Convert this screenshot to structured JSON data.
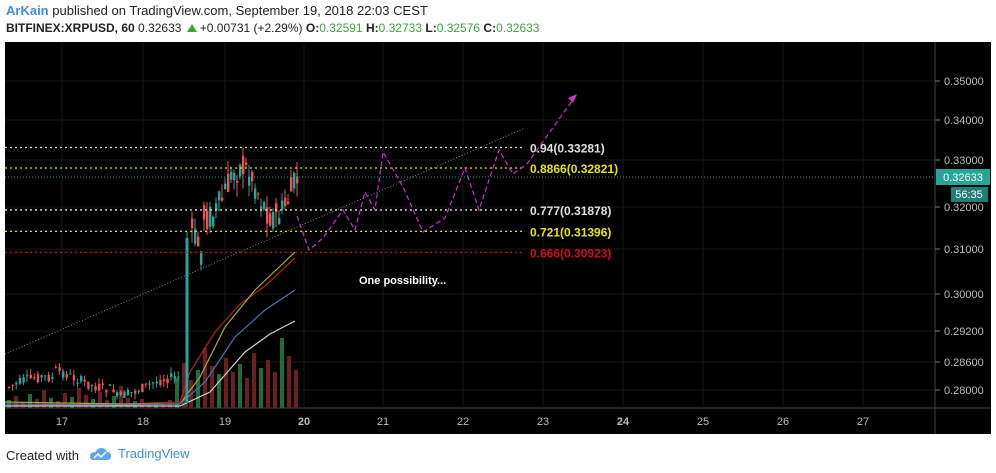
{
  "header": {
    "author": "ArKain",
    "published": "published on TradingView.com, September 19, 2018 22:03 CEST",
    "symbol": "BITFINEX:XRPUSD, 60",
    "last": "0.32633",
    "change": "+0.00731 (+2.29%)",
    "o_label": "O:",
    "o_value": "0.32591",
    "h_label": "H:",
    "h_value": "0.32733",
    "l_label": "L:",
    "l_value": "0.32576",
    "c_label": "C:",
    "c_value": "0.32633"
  },
  "chart_data": {
    "type": "line",
    "price_axis": [
      "0.35000",
      "0.34000",
      "0.33000",
      "0.32000",
      "0.31000",
      "0.30000",
      "0.29200",
      "0.28600",
      "0.28000"
    ],
    "time_axis": [
      "17",
      "18",
      "19",
      "20",
      "21",
      "22",
      "23",
      "24",
      "25",
      "26",
      "27"
    ],
    "current_price": "0.32633",
    "countdown": "56:35",
    "fib_levels": [
      {
        "label": "0.94(0.33281)",
        "value": 0.33281,
        "color": "#e0e0e0"
      },
      {
        "label": "0.8866(0.32821)",
        "value": 0.32821,
        "color": "#e6e600"
      },
      {
        "label": "0.777(0.31878)",
        "value": 0.31878,
        "color": "#e0e0e0"
      },
      {
        "label": "0.721(0.31396)",
        "value": 0.31396,
        "color": "#e6e600"
      },
      {
        "label": "0.666(0.30923)",
        "value": 0.30923,
        "color": "#cc1111"
      }
    ],
    "annotation": "One possibility...",
    "projection_color": "#cc33cc"
  },
  "footer": {
    "created": "Created with",
    "brand": "TradingView"
  }
}
